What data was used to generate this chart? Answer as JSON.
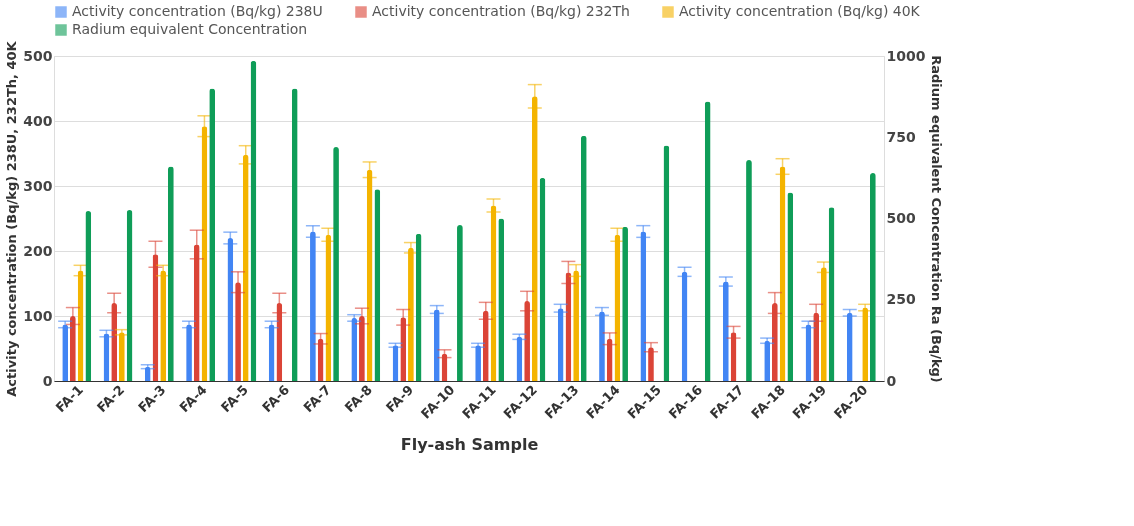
{
  "chart_data": {
    "type": "bar",
    "xlabel": "Fly-ash Sample",
    "ylabel": "Activity concentration (Bq/kg) 238U, 232Th, 40K",
    "y2label": "Radium equivalent Concentration  Ra (Bq/kg)",
    "categories": [
      "FA-1",
      "FA-2",
      "FA-3",
      "FA-4",
      "FA-5",
      "FA-6",
      "FA-7",
      "FA-8",
      "FA-9",
      "FA-10",
      "FA-11",
      "FA-12",
      "FA-13",
      "FA-14",
      "FA-15",
      "FA-16",
      "FA-17",
      "FA-18",
      "FA-19",
      "FA-20"
    ],
    "series": [
      {
        "name": "Activity concentration (Bq/kg) 238U",
        "color": "#4285f4",
        "values": [
          87,
          73,
          22,
          87,
          220,
          87,
          230,
          97,
          55,
          110,
          55,
          68,
          112,
          107,
          230,
          168,
          153,
          62,
          87,
          105
        ],
        "errors": [
          5,
          5,
          3,
          5,
          9,
          5,
          9,
          5,
          3,
          6,
          3,
          4,
          6,
          6,
          9,
          7,
          7,
          4,
          5,
          5
        ]
      },
      {
        "name": "Activity concentration (Bq/kg) 232Th",
        "color": "#db4437",
        "values": [
          100,
          120,
          195,
          210,
          152,
          120,
          65,
          100,
          98,
          42,
          108,
          123,
          167,
          65,
          52,
          null,
          75,
          120,
          105,
          null
        ],
        "errors": [
          13,
          15,
          20,
          22,
          16,
          15,
          8,
          12,
          12,
          6,
          13,
          15,
          17,
          9,
          7,
          null,
          9,
          16,
          13,
          null
        ]
      },
      {
        "name": "Activity concentration (Bq/kg) 40K",
        "color": "#f4b400",
        "values": [
          170,
          75,
          170,
          392,
          348,
          null,
          225,
          325,
          205,
          null,
          270,
          438,
          170,
          225,
          null,
          null,
          null,
          330,
          175,
          113
        ],
        "errors": [
          8,
          4,
          8,
          16,
          14,
          null,
          10,
          12,
          8,
          null,
          10,
          18,
          9,
          10,
          null,
          null,
          null,
          12,
          8,
          5
        ]
      },
      {
        "name": "Radium equivalent Concentration",
        "color": "#0f9d58",
        "axis": "y2",
        "values": [
          523,
          526,
          660,
          900,
          985,
          900,
          720,
          590,
          453,
          480,
          500,
          625,
          755,
          475,
          725,
          860,
          680,
          580,
          535,
          640
        ]
      }
    ],
    "ylim": [
      0,
      500
    ],
    "yticks": [
      0,
      100,
      200,
      300,
      400,
      500
    ],
    "y2lim": [
      0,
      1000
    ],
    "y2ticks": [
      0,
      250,
      500,
      750,
      1000
    ],
    "grid": "y",
    "legend": "top"
  }
}
